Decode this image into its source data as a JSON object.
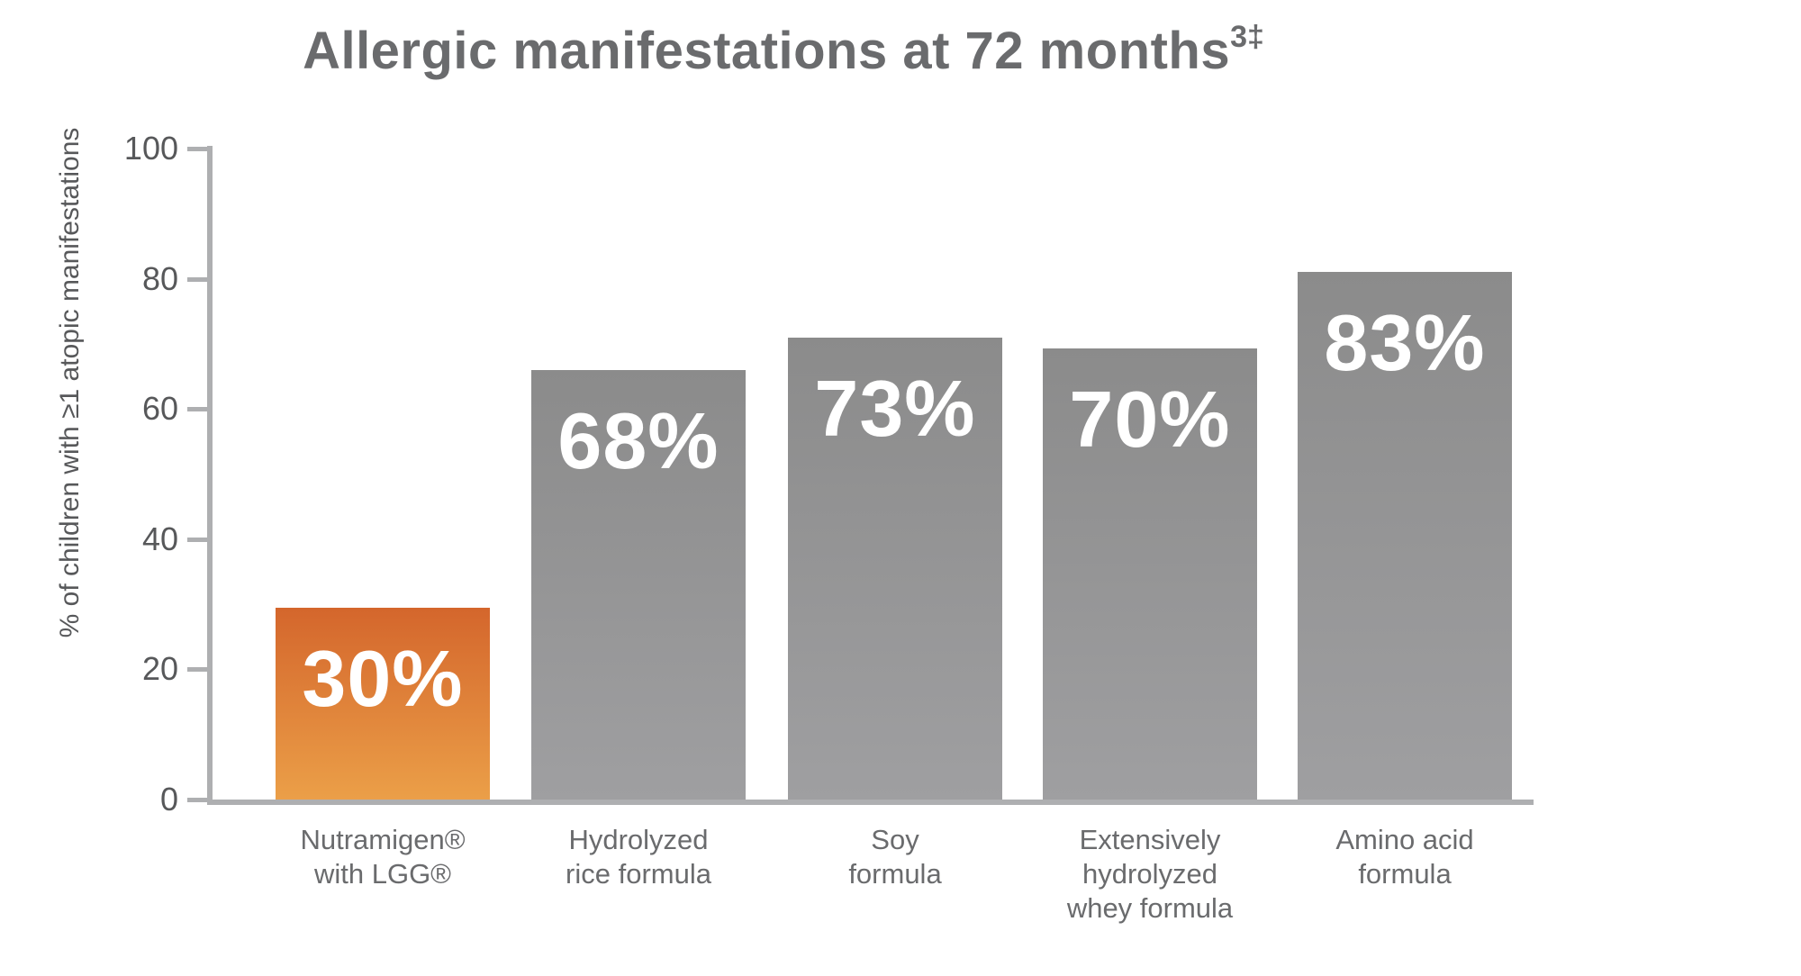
{
  "title": {
    "main": "Allergic manifestations at 72 months",
    "superscript": "3‡"
  },
  "chart_data": {
    "type": "bar",
    "title": "Allergic manifestations at 72 months³‡",
    "xlabel": "",
    "ylabel": "% of children with ≥1 atopic manifestations",
    "ylim": [
      0,
      100
    ],
    "y_ticks": [
      "100",
      "80",
      "60",
      "40",
      "20",
      "0"
    ],
    "grid": false,
    "legend": false,
    "categories": [
      "Nutramigen® with LGG®",
      "Hydrolyzed rice formula",
      "Soy formula",
      "Extensively hydrolyzed whey formula",
      "Amino acid formula"
    ],
    "values": [
      30,
      68,
      73,
      70,
      83
    ],
    "bars": [
      {
        "category_lines": [
          "Nutramigen®",
          "with LGG®"
        ],
        "value": 30,
        "value_label": "30%",
        "draw_pct": 29.5,
        "highlight": true
      },
      {
        "category_lines": [
          "Hydrolyzed",
          "rice formula"
        ],
        "value": 68,
        "value_label": "68%",
        "draw_pct": 66,
        "highlight": false
      },
      {
        "category_lines": [
          "Soy",
          "formula"
        ],
        "value": 73,
        "value_label": "73%",
        "draw_pct": 71,
        "highlight": false
      },
      {
        "category_lines": [
          "Extensively",
          "hydrolyzed",
          "whey formula"
        ],
        "value": 70,
        "value_label": "70%",
        "draw_pct": 69.3,
        "highlight": false
      },
      {
        "category_lines": [
          "Amino acid",
          "formula"
        ],
        "value": 83,
        "value_label": "83%",
        "draw_pct": 81,
        "highlight": false
      }
    ],
    "colors": {
      "highlight_bar_top": "#d4662c",
      "highlight_bar_bottom": "#eb9f48",
      "default_bar_top": "#8b8b8b",
      "default_bar_bottom": "#9f9fa1",
      "axis_line": "#aeafb1",
      "title_text": "#6a6b6d",
      "tick_text": "#57585a",
      "value_text": "#ffffff"
    }
  }
}
